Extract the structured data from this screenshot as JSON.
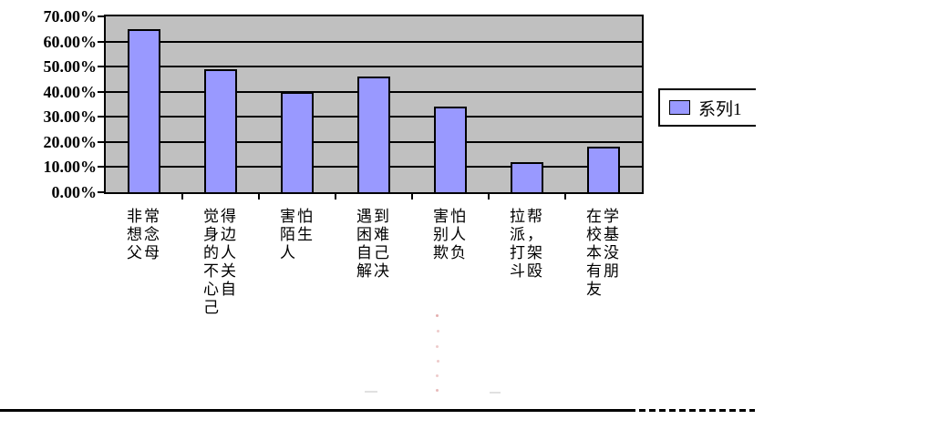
{
  "chart_data": {
    "type": "bar",
    "title": "",
    "categories": [
      "非常想念父母",
      "觉得身边的人不关心自己",
      "害怕陌生人",
      "遇到困难自己解决",
      "害怕别人欺负",
      "拉帮派，打架斗殴",
      "在学校基本没有朋友"
    ],
    "series": [
      {
        "name": "系列1",
        "values": [
          65,
          49,
          40,
          46,
          34,
          12,
          18
        ]
      }
    ],
    "value_unit": "percent",
    "ylim": [
      0,
      70
    ],
    "ytick_step": 10,
    "yticks": [
      "70.00%",
      "60.00%",
      "50.00%",
      "40.00%",
      "30.00%",
      "20.00%",
      "10.00%",
      "0.00%"
    ],
    "xlabel": "",
    "ylabel": "",
    "grid": true,
    "legend_position": "right",
    "plot_bg_color": "#C0C0C0",
    "bar_color": "#9999FF",
    "gridline_color": "#000000"
  }
}
